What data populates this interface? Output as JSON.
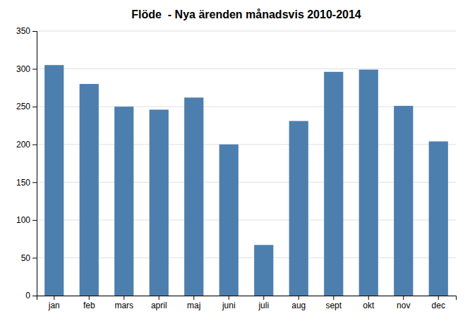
{
  "chart_data": {
    "type": "bar",
    "title": "Flöde  - Nya ärenden månadsvis 2010-2014",
    "categories": [
      "jan",
      "feb",
      "mars",
      "april",
      "maj",
      "juni",
      "juli",
      "aug",
      "sept",
      "okt",
      "nov",
      "dec"
    ],
    "values": [
      305,
      280,
      250,
      246,
      262,
      200,
      67,
      231,
      296,
      299,
      251,
      204
    ],
    "color": "#4d7fae",
    "ylim": [
      0,
      350
    ],
    "yticks": [
      0,
      50,
      100,
      150,
      200,
      250,
      300,
      350
    ],
    "grid": true
  }
}
